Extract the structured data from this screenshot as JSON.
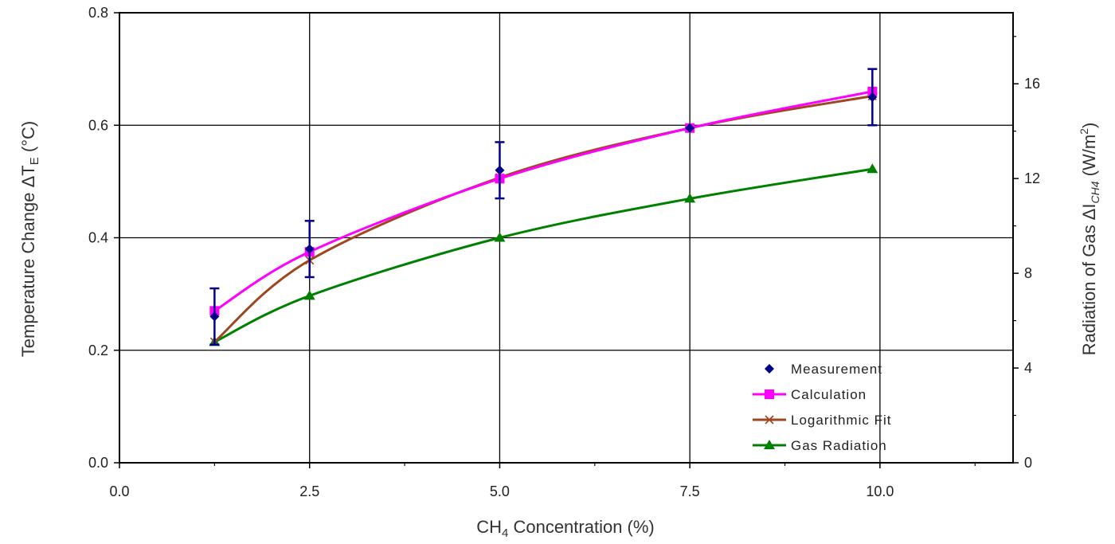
{
  "chart_data": {
    "type": "line",
    "x_values": [
      1.25,
      2.5,
      5.0,
      7.5,
      9.9
    ],
    "x_ticks": [
      "0.0",
      "2.5",
      "5.0",
      "7.5",
      "10.0"
    ],
    "x_tick_values": [
      0,
      2.5,
      5.0,
      7.5,
      10.0
    ],
    "xlim": [
      0,
      11.75
    ],
    "y_ticks": [
      "0.0",
      "0.2",
      "0.4",
      "0.6",
      "0.8"
    ],
    "y_tick_values": [
      0.0,
      0.2,
      0.4,
      0.6,
      0.8
    ],
    "ylim": [
      0,
      0.8
    ],
    "y2_ticks": [
      "0",
      "4",
      "8",
      "12",
      "16"
    ],
    "y2_tick_values": [
      0,
      4,
      8,
      12,
      16
    ],
    "y2lim": [
      0,
      19
    ],
    "xlabel": {
      "prefix": "CH",
      "sub": "4",
      "suffix": " Concentration (%)"
    },
    "ylabel": {
      "prefix": "Temperature Change  ΔT",
      "sub": "E",
      "suffix": " (°C)"
    },
    "y2label": {
      "prefix": "Radiation of Gas ΔI",
      "sub": "CH4",
      "suffix": " (W/m",
      "sup": "2",
      "end": ")"
    },
    "grid": true,
    "legend_position": "bottom-right",
    "series": [
      {
        "name": "Measurement",
        "marker": "diamond",
        "color": "#00008b",
        "axis": "left",
        "values": [
          0.26,
          0.38,
          0.52,
          0.595,
          0.65
        ],
        "error": [
          0.05,
          0.05,
          0.05,
          0.0,
          0.05
        ]
      },
      {
        "name": "Calculation",
        "marker": "square",
        "color": "#ff00ff",
        "axis": "left",
        "values": [
          0.27,
          0.375,
          0.505,
          0.595,
          0.66
        ]
      },
      {
        "name": "Logarithmic Fit",
        "marker": "x",
        "color": "#a0461e",
        "axis": "left",
        "values": [
          0.215,
          0.36,
          0.507,
          0.595,
          0.652
        ]
      },
      {
        "name": "Gas Radiation",
        "marker": "triangle",
        "color": "#008000",
        "axis": "right",
        "values": [
          5.1,
          7.05,
          9.5,
          11.15,
          12.4
        ]
      }
    ]
  }
}
